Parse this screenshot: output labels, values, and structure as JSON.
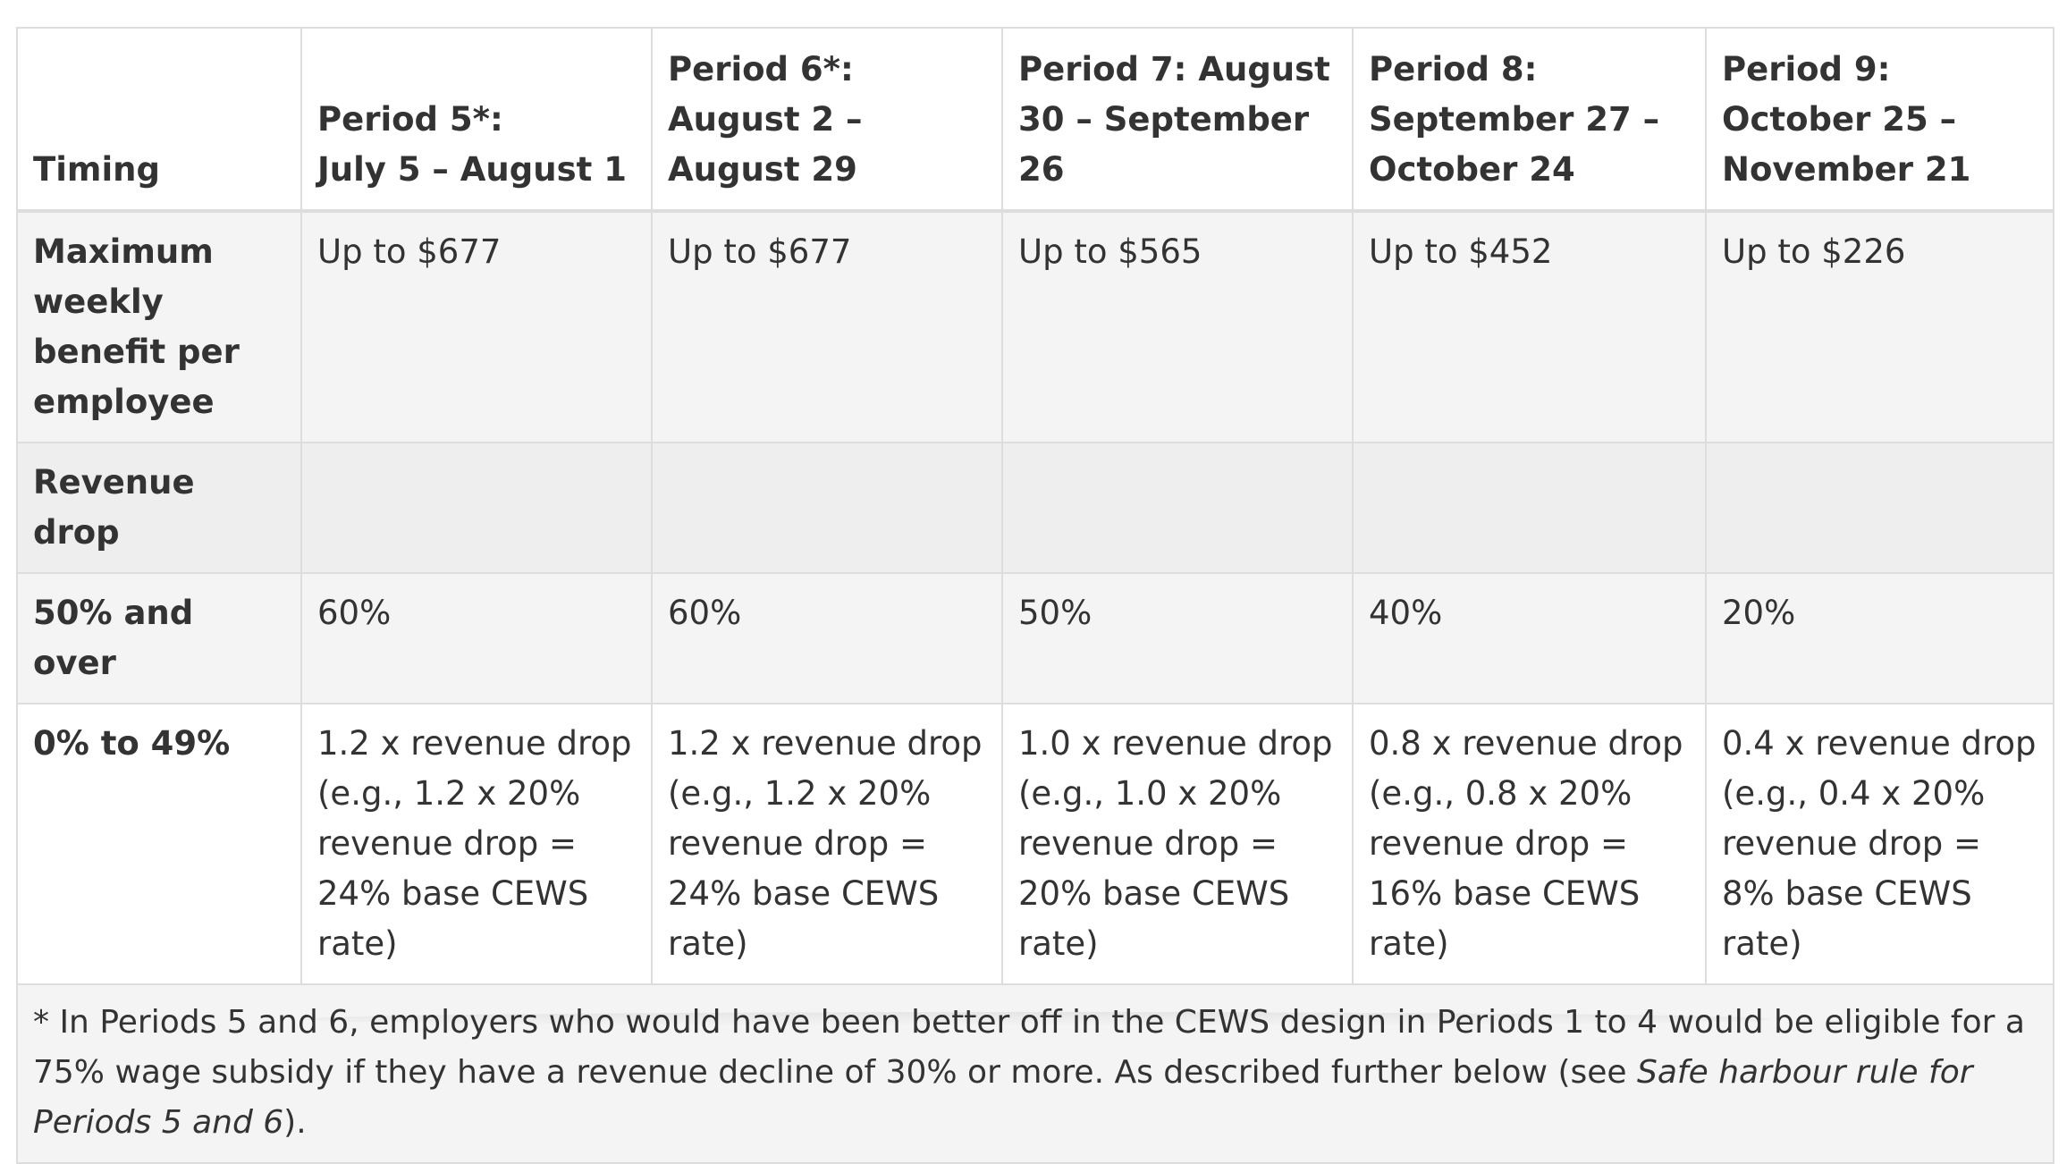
{
  "table": {
    "headers": [
      "Timing",
      "Period 5*:\nJuly 5 – August 1",
      "Period 6*: August 2 – August 29",
      "Period 7: August 30 – September 26",
      "Period 8: September 27 – October 24",
      "Period 9: October 25 – November 21"
    ],
    "rows": [
      {
        "label": "Maximum weekly benefit per employee",
        "cells": [
          "Up to $677",
          "Up to $677",
          "Up to $565",
          "Up to $452",
          "Up to $226"
        ]
      },
      {
        "label": "Revenue drop",
        "cells": [
          "",
          "",
          "",
          "",
          ""
        ]
      },
      {
        "label": "50% and over",
        "cells": [
          "60%",
          "60%",
          "50%",
          "40%",
          "20%"
        ]
      },
      {
        "label": "0% to 49%",
        "cells": [
          "1.2 x revenue drop (e.g., 1.2 x 20% revenue drop = 24% base CEWS rate)",
          "1.2 x revenue drop (e.g., 1.2 x 20% revenue drop = 24% base CEWS rate)",
          "1.0 x revenue drop (e.g., 1.0 x 20% revenue drop = 20% base CEWS rate)",
          "0.8 x revenue drop (e.g., 0.8 x 20% revenue drop  = 16% base CEWS rate)",
          "0.4 x revenue drop (e.g., 0.4 x 20% revenue drop = 8% base CEWS rate)"
        ]
      }
    ],
    "footnote": {
      "text": "* In Periods 5 and 6, employers who would have been better off in the CEWS design in Periods 1 to 4 would be eligible for a 75% wage subsidy if they have a revenue decline of 30% or more. As described further below (see ",
      "link_italic": "Safe harbour rule for Periods 5 and 6",
      "suffix": ")."
    }
  }
}
